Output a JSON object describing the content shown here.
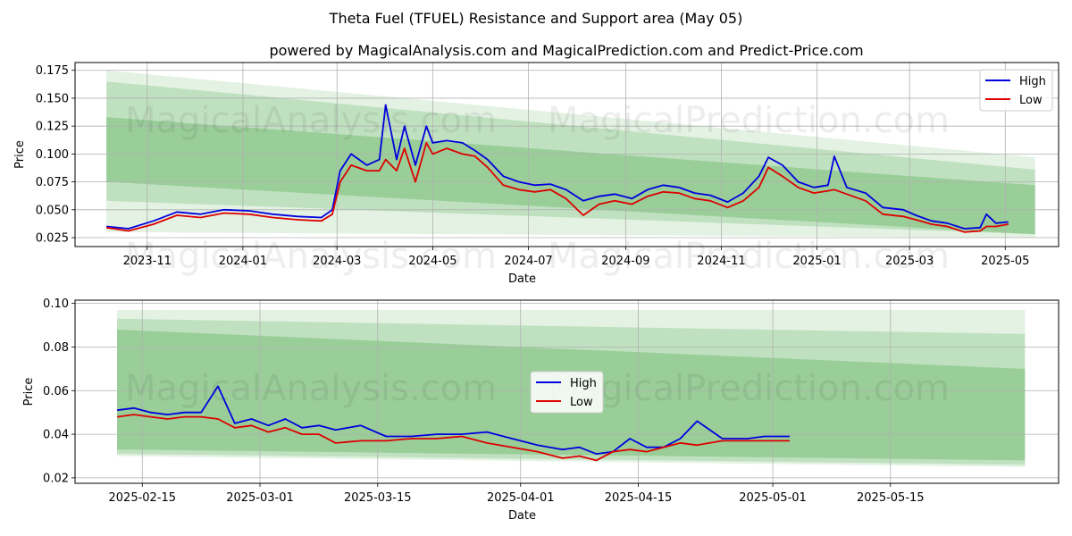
{
  "title": "Theta Fuel (TFUEL) Resistance and Support area (May 05)",
  "subtitle": "powered by MagicalAnalysis.com and MagicalPrediction.com and Predict-Price.com",
  "watermarks": [
    "MagicalAnalysis.com",
    "MagicalPrediction.com"
  ],
  "colors": {
    "high": "#0000dd",
    "low": "#dd0000",
    "band_light": "#c8e6c8",
    "band_mid": "#a8d5a8",
    "band_dark": "#8cc78c",
    "grid": "#b0b0b0"
  },
  "chart_data": [
    {
      "type": "line",
      "xlabel": "Date",
      "ylabel": "Price",
      "ylim": [
        0.017,
        0.182
      ],
      "xlim": [
        "2023-09-16",
        "2025-06-04"
      ],
      "yticks": [
        "0.025",
        "0.050",
        "0.075",
        "0.100",
        "0.125",
        "0.150",
        "0.175"
      ],
      "xticks": [
        "2023-11",
        "2024-01",
        "2024-03",
        "2024-05",
        "2024-07",
        "2024-09",
        "2024-11",
        "2025-01",
        "2025-03",
        "2025-05"
      ],
      "grid": true,
      "legend": "top-right",
      "legend_labels": [
        "High",
        "Low"
      ],
      "bands": [
        {
          "start": "2023-10-06",
          "end": "2025-05-20",
          "upper": [
            0.175,
            0.097
          ],
          "lower": [
            0.03,
            0.025
          ]
        },
        {
          "start": "2023-10-06",
          "end": "2025-05-20",
          "upper": [
            0.165,
            0.086
          ],
          "lower": [
            0.058,
            0.028
          ]
        },
        {
          "start": "2023-10-06",
          "end": "2025-05-20",
          "upper": [
            0.133,
            0.072
          ],
          "lower": [
            0.075,
            0.028
          ]
        }
      ],
      "series": [
        {
          "name": "High",
          "x": [
            "2023-10-06",
            "2023-10-20",
            "2023-11-05",
            "2023-11-20",
            "2023-12-05",
            "2023-12-20",
            "2024-01-05",
            "2024-01-20",
            "2024-02-05",
            "2024-02-20",
            "2024-02-27",
            "2024-03-03",
            "2024-03-10",
            "2024-03-20",
            "2024-03-28",
            "2024-04-01",
            "2024-04-08",
            "2024-04-13",
            "2024-04-20",
            "2024-04-27",
            "2024-05-01",
            "2024-05-10",
            "2024-05-20",
            "2024-05-28",
            "2024-06-05",
            "2024-06-15",
            "2024-06-25",
            "2024-07-05",
            "2024-07-15",
            "2024-07-25",
            "2024-08-05",
            "2024-08-15",
            "2024-08-25",
            "2024-09-05",
            "2024-09-15",
            "2024-09-25",
            "2024-10-05",
            "2024-10-15",
            "2024-10-25",
            "2024-11-05",
            "2024-11-15",
            "2024-11-25",
            "2024-12-01",
            "2024-12-10",
            "2024-12-20",
            "2024-12-30",
            "2025-01-08",
            "2025-01-12",
            "2025-01-20",
            "2025-02-01",
            "2025-02-12",
            "2025-02-25",
            "2025-03-05",
            "2025-03-15",
            "2025-03-25",
            "2025-04-05",
            "2025-04-15",
            "2025-04-19",
            "2025-04-25",
            "2025-05-03"
          ],
          "y": [
            0.035,
            0.033,
            0.04,
            0.048,
            0.046,
            0.05,
            0.049,
            0.046,
            0.044,
            0.043,
            0.05,
            0.085,
            0.1,
            0.09,
            0.095,
            0.144,
            0.095,
            0.125,
            0.09,
            0.125,
            0.11,
            0.112,
            0.11,
            0.103,
            0.095,
            0.08,
            0.075,
            0.072,
            0.073,
            0.068,
            0.058,
            0.062,
            0.064,
            0.06,
            0.068,
            0.072,
            0.07,
            0.065,
            0.063,
            0.057,
            0.065,
            0.08,
            0.097,
            0.09,
            0.075,
            0.07,
            0.072,
            0.098,
            0.07,
            0.065,
            0.052,
            0.05,
            0.045,
            0.04,
            0.038,
            0.033,
            0.034,
            0.046,
            0.038,
            0.039
          ]
        },
        {
          "name": "Low",
          "x": [
            "2023-10-06",
            "2023-10-20",
            "2023-11-05",
            "2023-11-20",
            "2023-12-05",
            "2023-12-20",
            "2024-01-05",
            "2024-01-20",
            "2024-02-05",
            "2024-02-20",
            "2024-02-27",
            "2024-03-03",
            "2024-03-10",
            "2024-03-20",
            "2024-03-28",
            "2024-04-01",
            "2024-04-08",
            "2024-04-13",
            "2024-04-20",
            "2024-04-27",
            "2024-05-01",
            "2024-05-10",
            "2024-05-20",
            "2024-05-28",
            "2024-06-05",
            "2024-06-15",
            "2024-06-25",
            "2024-07-05",
            "2024-07-15",
            "2024-07-25",
            "2024-08-05",
            "2024-08-15",
            "2024-08-25",
            "2024-09-05",
            "2024-09-15",
            "2024-09-25",
            "2024-10-05",
            "2024-10-15",
            "2024-10-25",
            "2024-11-05",
            "2024-11-15",
            "2024-11-25",
            "2024-12-01",
            "2024-12-10",
            "2024-12-20",
            "2024-12-30",
            "2025-01-08",
            "2025-01-12",
            "2025-01-20",
            "2025-02-01",
            "2025-02-12",
            "2025-02-25",
            "2025-03-05",
            "2025-03-15",
            "2025-03-25",
            "2025-04-05",
            "2025-04-15",
            "2025-04-19",
            "2025-04-25",
            "2025-05-03"
          ],
          "y": [
            0.034,
            0.031,
            0.037,
            0.045,
            0.043,
            0.047,
            0.046,
            0.043,
            0.041,
            0.04,
            0.046,
            0.075,
            0.09,
            0.085,
            0.085,
            0.095,
            0.085,
            0.105,
            0.075,
            0.11,
            0.1,
            0.105,
            0.1,
            0.098,
            0.088,
            0.072,
            0.068,
            0.066,
            0.068,
            0.06,
            0.045,
            0.055,
            0.058,
            0.055,
            0.062,
            0.066,
            0.065,
            0.06,
            0.058,
            0.052,
            0.058,
            0.07,
            0.088,
            0.08,
            0.07,
            0.065,
            0.067,
            0.068,
            0.064,
            0.058,
            0.046,
            0.044,
            0.041,
            0.037,
            0.035,
            0.03,
            0.031,
            0.035,
            0.035,
            0.037
          ]
        }
      ]
    },
    {
      "type": "line",
      "xlabel": "Date",
      "ylabel": "Price",
      "ylim": [
        0.0175,
        0.1015
      ],
      "xlim": [
        "2025-02-07",
        "2025-06-04"
      ],
      "yticks": [
        "0.02",
        "0.04",
        "0.06",
        "0.08",
        "0.10"
      ],
      "xticks": [
        "2025-02-15",
        "2025-03-01",
        "2025-03-15",
        "2025-04-01",
        "2025-04-15",
        "2025-05-01",
        "2025-05-15"
      ],
      "grid": true,
      "legend": "center",
      "legend_labels": [
        "High",
        "Low"
      ],
      "bands": [
        {
          "start": "2025-02-12",
          "end": "2025-05-31",
          "upper": [
            0.097,
            0.097
          ],
          "lower": [
            0.03,
            0.025
          ]
        },
        {
          "start": "2025-02-12",
          "end": "2025-05-31",
          "upper": [
            0.093,
            0.086
          ],
          "lower": [
            0.031,
            0.026
          ]
        },
        {
          "start": "2025-02-12",
          "end": "2025-05-31",
          "upper": [
            0.088,
            0.07
          ],
          "lower": [
            0.033,
            0.028
          ]
        }
      ],
      "series": [
        {
          "name": "High",
          "x": [
            "2025-02-12",
            "2025-02-14",
            "2025-02-16",
            "2025-02-18",
            "2025-02-20",
            "2025-02-22",
            "2025-02-24",
            "2025-02-26",
            "2025-02-28",
            "2025-03-02",
            "2025-03-04",
            "2025-03-06",
            "2025-03-08",
            "2025-03-10",
            "2025-03-13",
            "2025-03-16",
            "2025-03-19",
            "2025-03-22",
            "2025-03-25",
            "2025-03-28",
            "2025-03-31",
            "2025-04-03",
            "2025-04-06",
            "2025-04-08",
            "2025-04-10",
            "2025-04-12",
            "2025-04-14",
            "2025-04-16",
            "2025-04-18",
            "2025-04-20",
            "2025-04-22",
            "2025-04-25",
            "2025-04-28",
            "2025-04-30",
            "2025-05-03"
          ],
          "y": [
            0.051,
            0.052,
            0.05,
            0.049,
            0.05,
            0.05,
            0.062,
            0.045,
            0.047,
            0.044,
            0.047,
            0.043,
            0.044,
            0.042,
            0.044,
            0.039,
            0.039,
            0.04,
            0.04,
            0.041,
            0.038,
            0.035,
            0.033,
            0.034,
            0.031,
            0.032,
            0.038,
            0.034,
            0.034,
            0.038,
            0.046,
            0.038,
            0.038,
            0.039,
            0.039
          ]
        },
        {
          "name": "Low",
          "x": [
            "2025-02-12",
            "2025-02-14",
            "2025-02-16",
            "2025-02-18",
            "2025-02-20",
            "2025-02-22",
            "2025-02-24",
            "2025-02-26",
            "2025-02-28",
            "2025-03-02",
            "2025-03-04",
            "2025-03-06",
            "2025-03-08",
            "2025-03-10",
            "2025-03-13",
            "2025-03-16",
            "2025-03-19",
            "2025-03-22",
            "2025-03-25",
            "2025-03-28",
            "2025-03-31",
            "2025-04-03",
            "2025-04-06",
            "2025-04-08",
            "2025-04-10",
            "2025-04-12",
            "2025-04-14",
            "2025-04-16",
            "2025-04-18",
            "2025-04-20",
            "2025-04-22",
            "2025-04-25",
            "2025-04-28",
            "2025-04-30",
            "2025-05-03"
          ],
          "y": [
            0.048,
            0.049,
            0.048,
            0.047,
            0.048,
            0.048,
            0.047,
            0.043,
            0.044,
            0.041,
            0.043,
            0.04,
            0.04,
            0.036,
            0.037,
            0.037,
            0.038,
            0.038,
            0.039,
            0.036,
            0.034,
            0.032,
            0.029,
            0.03,
            0.028,
            0.032,
            0.033,
            0.032,
            0.034,
            0.036,
            0.035,
            0.037,
            0.037,
            0.037,
            0.037
          ]
        }
      ]
    }
  ]
}
